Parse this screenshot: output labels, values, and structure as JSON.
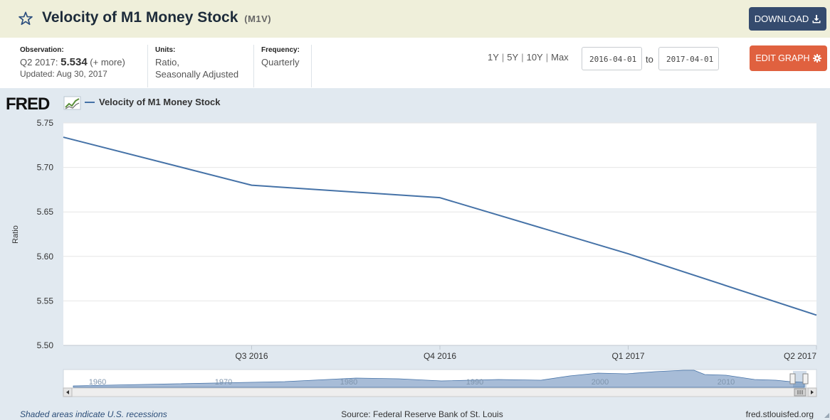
{
  "header": {
    "title": "Velocity of M1 Money Stock",
    "series_id": "(M1V)",
    "download_label": "DOWNLOAD"
  },
  "meta": {
    "observation_label": "Observation:",
    "observation_period": "Q2 2017:",
    "observation_value": "5.534",
    "observation_more": "(+ more)",
    "updated": "Updated: Aug 30, 2017",
    "units_label": "Units:",
    "units_line1": "Ratio,",
    "units_line2": "Seasonally Adjusted",
    "frequency_label": "Frequency:",
    "frequency_value": "Quarterly"
  },
  "range_buttons": [
    "1Y",
    "5Y",
    "10Y",
    "Max"
  ],
  "date_range": {
    "start": "2016-04-01",
    "to_label": "to",
    "end": "2017-04-01"
  },
  "edit_graph_label": "EDIT GRAPH",
  "icons": {
    "favorite": "star-icon",
    "download": "download-icon",
    "edit": "gear-icon",
    "logo_chart": "chart-icon"
  },
  "colors": {
    "series": "#4572a7",
    "download_bg": "#354b6e",
    "edit_bg": "#e0613f",
    "header_bg": "#efefda",
    "chart_bg": "#e1e9f0"
  },
  "logo_text": "FRED",
  "chart_data": {
    "type": "line",
    "legend": [
      "Velocity of M1 Money Stock"
    ],
    "ylabel": "Ratio",
    "ylim": [
      5.5,
      5.75
    ],
    "y_ticks": [
      "5.50",
      "5.55",
      "5.60",
      "5.65",
      "5.70",
      "5.75"
    ],
    "x": [
      "Q2 2016",
      "Q3 2016",
      "Q4 2016",
      "Q1 2017",
      "Q2 2017"
    ],
    "x_tick_labels": [
      "Q3 2016",
      "Q4 2016",
      "Q1 2017",
      "Q2 2017"
    ],
    "series": [
      {
        "name": "Velocity of M1 Money Stock",
        "values": [
          5.734,
          5.68,
          5.666,
          5.603,
          5.534
        ]
      }
    ],
    "grid": true,
    "navigator": {
      "tick_labels": [
        "1960",
        "1970",
        "1980",
        "1990",
        "2000",
        "2010"
      ]
    }
  },
  "footer": {
    "recession_note": "Shaded areas indicate U.S. recessions",
    "source": "Source: Federal Reserve Bank of St. Louis",
    "site": "fred.stlouisfed.org"
  }
}
